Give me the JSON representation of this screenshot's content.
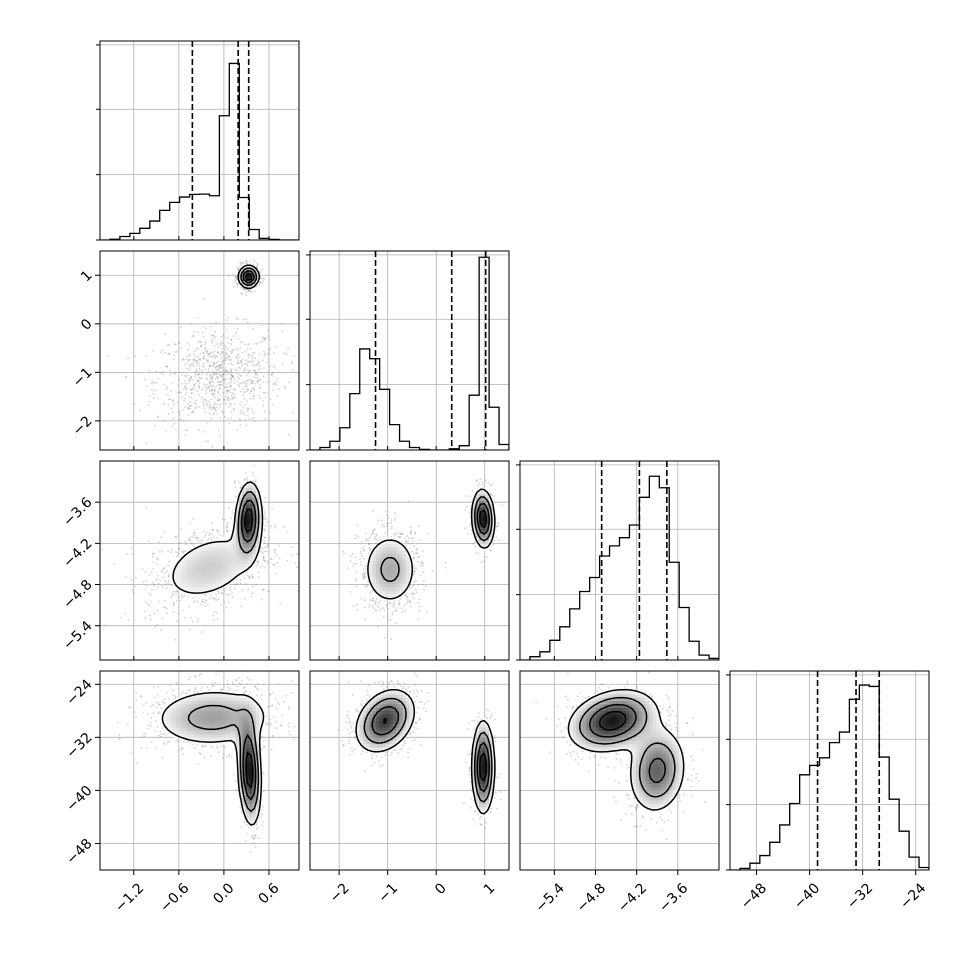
{
  "chart_data": {
    "type": "corner",
    "grid": true,
    "grid_color": "#b0b0b0",
    "ink_color": "#000000",
    "scatter_color": "#808080",
    "variables": [
      {
        "index": 0,
        "range": [
          -1.65,
          1.0
        ],
        "ticks": [
          -1.2,
          -0.6,
          0.0,
          0.6
        ],
        "tick_labels": [
          "−1.2",
          "−0.6",
          "0.0",
          "0.6"
        ],
        "quantiles": [
          -0.42,
          0.19,
          0.33
        ],
        "hist_max": 1.0
      },
      {
        "index": 1,
        "range": [
          -2.6,
          1.5
        ],
        "ticks": [
          -2,
          -1,
          0,
          1
        ],
        "tick_labels": [
          "−2",
          "−1",
          "0",
          "1"
        ],
        "quantiles": [
          -1.25,
          0.32,
          1.02
        ],
        "hist_max": 1.0
      },
      {
        "index": 2,
        "range": [
          -5.9,
          -3.0
        ],
        "ticks": [
          -5.4,
          -4.8,
          -4.2,
          -3.6
        ],
        "tick_labels": [
          "−5.4",
          "−4.8",
          "−4.2",
          "−3.6"
        ],
        "quantiles": [
          -4.71,
          -4.16,
          -3.76
        ],
        "hist_max": 1.0
      },
      {
        "index": 3,
        "range": [
          -52,
          -22
        ],
        "ticks": [
          -48,
          -40,
          -32,
          -24
        ],
        "tick_labels": [
          "−48",
          "−40",
          "−32",
          "−24"
        ],
        "quantiles": [
          -38.8,
          -33.0,
          -29.5
        ],
        "hist_max": 1.0
      }
    ],
    "histograms": [
      {
        "var": 0,
        "bin_edges": [
          -1.65,
          -1.517,
          -1.385,
          -1.252,
          -1.12,
          -0.987,
          -0.855,
          -0.722,
          -0.59,
          -0.457,
          -0.325,
          -0.192,
          -0.06,
          0.072,
          0.205,
          0.338,
          0.47,
          0.603,
          0.735,
          0.868,
          1.0
        ],
        "counts": [
          0.0,
          0.004,
          0.018,
          0.034,
          0.06,
          0.097,
          0.152,
          0.193,
          0.22,
          0.234,
          0.235,
          0.227,
          0.637,
          0.905,
          0.218,
          0.054,
          0.008,
          0.003,
          0.0,
          0.0
        ]
      },
      {
        "var": 1,
        "bin_edges": [
          -2.6,
          -2.395,
          -2.19,
          -1.985,
          -1.78,
          -1.575,
          -1.37,
          -1.165,
          -0.96,
          -0.755,
          -0.55,
          -0.345,
          -0.14,
          0.065,
          0.27,
          0.475,
          0.68,
          0.885,
          1.09,
          1.295,
          1.5
        ],
        "counts": [
          0.0,
          0.013,
          0.045,
          0.114,
          0.289,
          0.518,
          0.468,
          0.311,
          0.13,
          0.045,
          0.013,
          0.003,
          0.0,
          0.0,
          0.006,
          0.022,
          0.281,
          0.988,
          0.219,
          0.028
        ]
      },
      {
        "var": 2,
        "bin_edges": [
          -5.9,
          -5.755,
          -5.61,
          -5.465,
          -5.32,
          -5.175,
          -5.03,
          -4.885,
          -4.74,
          -4.595,
          -4.45,
          -4.305,
          -4.16,
          -4.015,
          -3.87,
          -3.725,
          -3.58,
          -3.435,
          -3.29,
          -3.145,
          -3.0
        ],
        "counts": [
          0.0,
          0.017,
          0.042,
          0.101,
          0.17,
          0.262,
          0.351,
          0.423,
          0.533,
          0.585,
          0.627,
          0.692,
          0.834,
          0.942,
          0.883,
          0.501,
          0.269,
          0.096,
          0.025,
          0.008
        ]
      },
      {
        "var": 3,
        "bin_edges": [
          -52,
          -50.5,
          -49,
          -47.5,
          -46,
          -44.5,
          -43,
          -41.5,
          -40,
          -38.5,
          -37,
          -35.5,
          -34,
          -32.5,
          -31,
          -29.5,
          -28,
          -26.5,
          -25,
          -23.5,
          -22
        ],
        "counts": [
          0.0,
          0.008,
          0.035,
          0.074,
          0.142,
          0.231,
          0.341,
          0.488,
          0.536,
          0.575,
          0.653,
          0.707,
          0.875,
          0.948,
          0.941,
          0.579,
          0.363,
          0.199,
          0.066,
          0.013
        ]
      }
    ],
    "pairs": [
      {
        "x_var": 0,
        "y_var": 1,
        "components": [
          {
            "cx": -0.08,
            "cy": -1.1,
            "sx": 0.42,
            "sy": 0.5,
            "rho": 0.08,
            "weight": 0.6
          },
          {
            "cx": 0.33,
            "cy": 0.97,
            "sx": 0.07,
            "sy": 0.12,
            "rho": 0.0,
            "weight": 0.4
          }
        ]
      },
      {
        "x_var": 0,
        "y_var": 2,
        "components": [
          {
            "cx": -0.2,
            "cy": -4.55,
            "sx": 0.42,
            "sy": 0.33,
            "rho": 0.35,
            "weight": 0.6
          },
          {
            "cx": 0.33,
            "cy": -3.85,
            "sx": 0.09,
            "sy": 0.28,
            "rho": 0.1,
            "weight": 0.4
          }
        ]
      },
      {
        "x_var": 0,
        "y_var": 3,
        "components": [
          {
            "cx": -0.15,
            "cy": -29.0,
            "sx": 0.45,
            "sy": 2.5,
            "rho": 0.05,
            "weight": 0.6
          },
          {
            "cx": 0.34,
            "cy": -37.0,
            "sx": 0.08,
            "sy": 4.2,
            "rho": -0.2,
            "weight": 0.4
          }
        ]
      },
      {
        "x_var": 1,
        "y_var": 2,
        "components": [
          {
            "cx": -0.95,
            "cy": -4.58,
            "sx": 0.32,
            "sy": 0.3,
            "rho": 0.0,
            "weight": 0.6
          },
          {
            "cx": 0.97,
            "cy": -3.84,
            "sx": 0.12,
            "sy": 0.22,
            "rho": -0.1,
            "weight": 0.4
          }
        ]
      },
      {
        "x_var": 1,
        "y_var": 3,
        "components": [
          {
            "cx": -1.05,
            "cy": -29.5,
            "sx": 0.32,
            "sy": 2.5,
            "rho": 0.3,
            "weight": 0.6
          },
          {
            "cx": 0.97,
            "cy": -36.5,
            "sx": 0.12,
            "sy": 3.6,
            "rho": 0.0,
            "weight": 0.4
          }
        ]
      },
      {
        "x_var": 2,
        "y_var": 3,
        "components": [
          {
            "cx": -4.55,
            "cy": -29.5,
            "sx": 0.33,
            "sy": 2.4,
            "rho": 0.25,
            "weight": 0.6
          },
          {
            "cx": -3.9,
            "cy": -37.0,
            "sx": 0.22,
            "sy": 3.4,
            "rho": 0.1,
            "weight": 0.4
          }
        ]
      }
    ]
  }
}
